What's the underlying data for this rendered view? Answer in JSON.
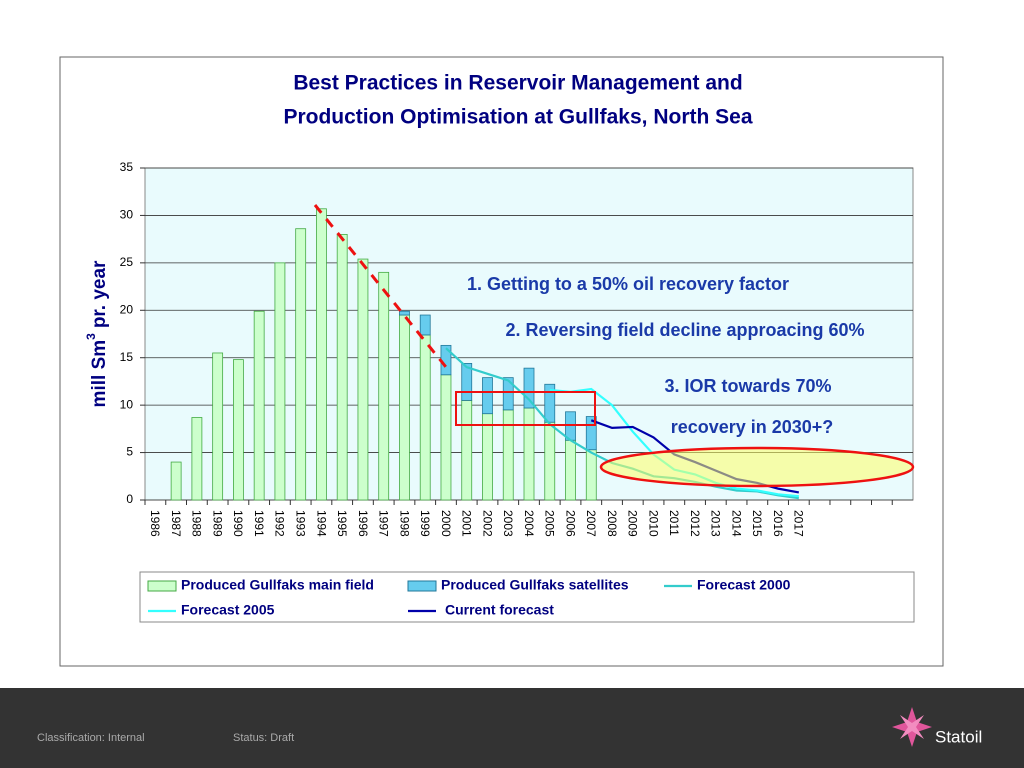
{
  "chart_data": {
    "type": "bar",
    "stacked": true,
    "title": [
      "Best Practices in Reservoir Management and",
      "Production Optimisation at Gullfaks, North Sea"
    ],
    "y_label": [
      "mill Sm",
      "3",
      "pr. year"
    ],
    "categories": [
      "1986",
      "1987",
      "1988",
      "1989",
      "1990",
      "1991",
      "1992",
      "1993",
      "1994",
      "1995",
      "1996",
      "1997",
      "1998",
      "1999",
      "2000",
      "2001",
      "2002",
      "2003",
      "2004",
      "2005",
      "2006",
      "2007",
      "2008",
      "2009",
      "2010",
      "2011",
      "2012",
      "2013",
      "2014",
      "2015",
      "2016",
      "2017",
      null,
      null,
      null,
      null,
      null
    ],
    "ylim": [
      0,
      35
    ],
    "yticks": [
      0,
      5,
      10,
      15,
      20,
      25,
      30,
      35
    ],
    "grid": true,
    "series": [
      {
        "name": "Produced Gullfaks main field",
        "type": "bar",
        "color": "#ccffcc",
        "values": [
          0,
          4,
          8.7,
          15.5,
          14.8,
          19.9,
          25,
          28.6,
          30.7,
          28,
          25.4,
          24,
          19.5,
          17.4,
          13.2,
          10.5,
          9.1,
          9.5,
          9.7,
          8.2,
          6.3,
          5.3,
          null,
          null,
          null,
          null,
          null,
          null,
          null,
          null,
          null,
          null,
          null,
          null,
          null,
          null,
          null
        ]
      },
      {
        "name": "Produced Gullfaks satellites",
        "type": "bar",
        "color": "#66ccee",
        "values": [
          null,
          null,
          null,
          null,
          null,
          null,
          null,
          null,
          null,
          null,
          null,
          null,
          0.4,
          2.1,
          3.1,
          3.9,
          3.8,
          3.4,
          4.2,
          4.0,
          3.0,
          3.5,
          null,
          null,
          null,
          null,
          null,
          null,
          null,
          null,
          null,
          null,
          null,
          null,
          null,
          null,
          null
        ]
      },
      {
        "name": "Forecast 2000",
        "type": "line",
        "color": "#33cccc",
        "values": [
          null,
          null,
          null,
          null,
          null,
          null,
          null,
          null,
          null,
          null,
          null,
          null,
          null,
          null,
          16,
          14,
          13.3,
          12.6,
          10.6,
          8,
          6.3,
          5,
          3.9,
          3.3,
          2.5,
          2.3,
          1.9,
          1.4,
          1,
          0.9,
          0.5,
          0.2,
          null,
          null,
          null,
          null,
          null
        ]
      },
      {
        "name": "Forecast 2005",
        "type": "line",
        "color": "#33ffff",
        "values": [
          null,
          null,
          null,
          null,
          null,
          null,
          null,
          null,
          null,
          null,
          null,
          null,
          null,
          null,
          null,
          null,
          null,
          null,
          null,
          11.6,
          11.4,
          11.7,
          10,
          7.2,
          4.8,
          3.2,
          2.7,
          1.8,
          1.2,
          1,
          0.6,
          0.4,
          null,
          null,
          null,
          null,
          null
        ]
      },
      {
        "name": "Current forecast",
        "type": "line",
        "color": "#0000aa",
        "values": [
          null,
          null,
          null,
          null,
          null,
          null,
          null,
          null,
          null,
          null,
          null,
          null,
          null,
          null,
          null,
          null,
          null,
          null,
          null,
          null,
          null,
          8.4,
          7.6,
          7.7,
          6.6,
          4.8,
          4,
          3.1,
          2.2,
          1.8,
          1.2,
          0.8,
          null,
          null,
          null,
          null,
          null
        ]
      }
    ],
    "annotations": [
      "1. Getting to a 50% oil recovery factor",
      "2. Reversing field decline approacing 60%",
      "3. IOR towards 70%",
      "recovery in 2030+?"
    ]
  },
  "footer": {
    "classification": "Classification: Internal",
    "status": "Status: Draft",
    "logo": "Statoil"
  }
}
